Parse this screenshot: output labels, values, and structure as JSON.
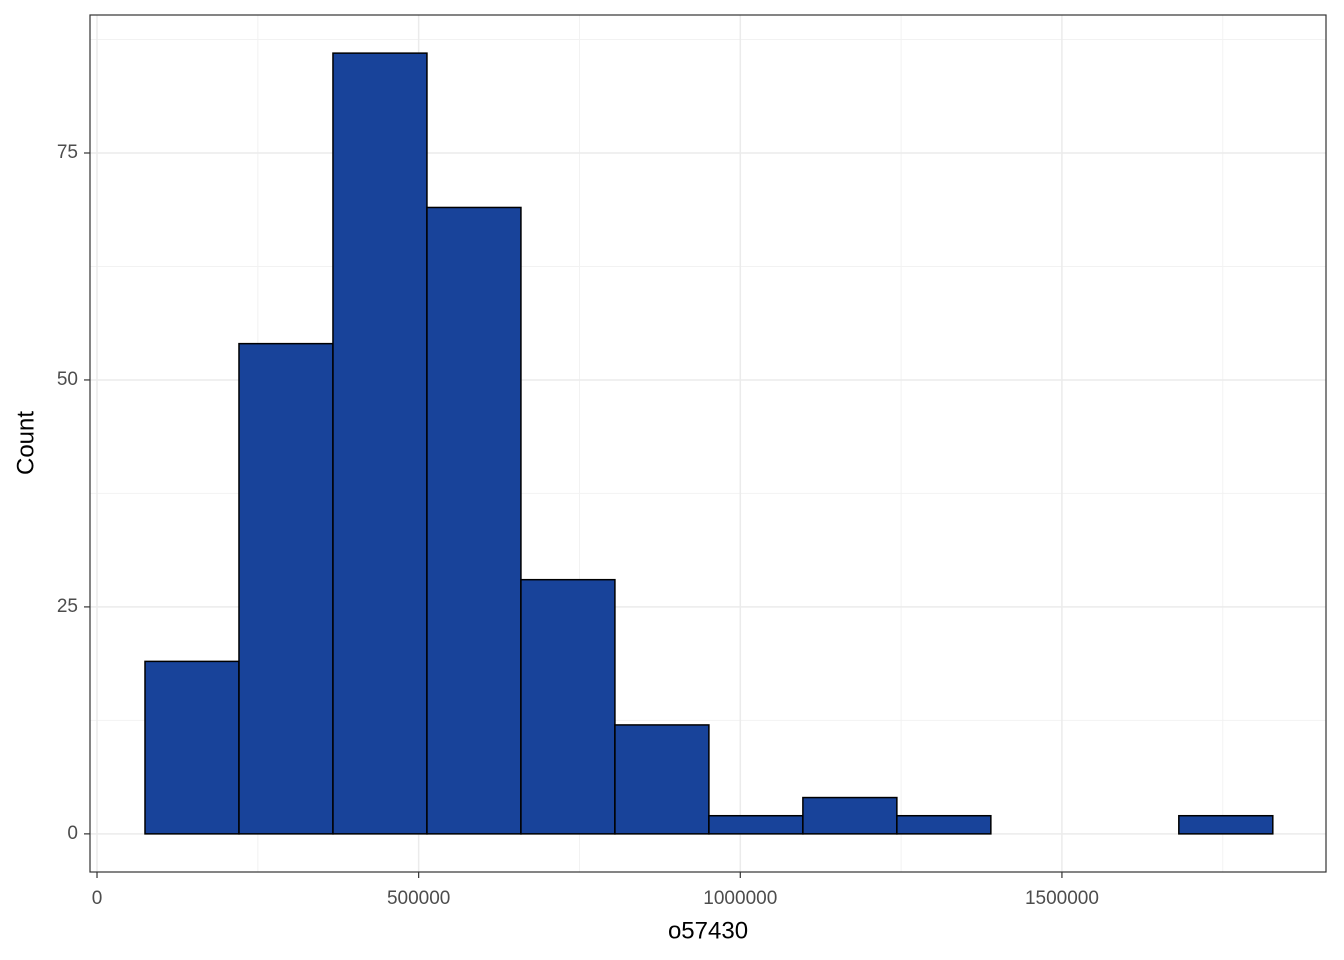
{
  "chart_data": {
    "type": "histogram",
    "x_label": "o57430",
    "y_label": "Count",
    "bins": [
      74600,
      220700,
      366800,
      512900,
      659000,
      805100,
      951200,
      1097300,
      1243400,
      1389500,
      1535600,
      1681700,
      1827800
    ],
    "counts": [
      19,
      54,
      86,
      69,
      28,
      12,
      2,
      4,
      2,
      0,
      0,
      2
    ],
    "color": "#18439a",
    "edge_color": "#000000",
    "xlim": [
      -10900,
      1910500
    ],
    "ylim": [
      -4.2,
      90.2
    ],
    "xticks": [
      0,
      500000,
      1000000,
      1500000
    ],
    "yticks": [
      0,
      25,
      50,
      75
    ],
    "x_minor_grid": [
      250000,
      750000,
      1250000,
      1750000
    ],
    "y_minor_grid": [
      12.5,
      37.5,
      62.5,
      87.5
    ],
    "grid": true
  }
}
